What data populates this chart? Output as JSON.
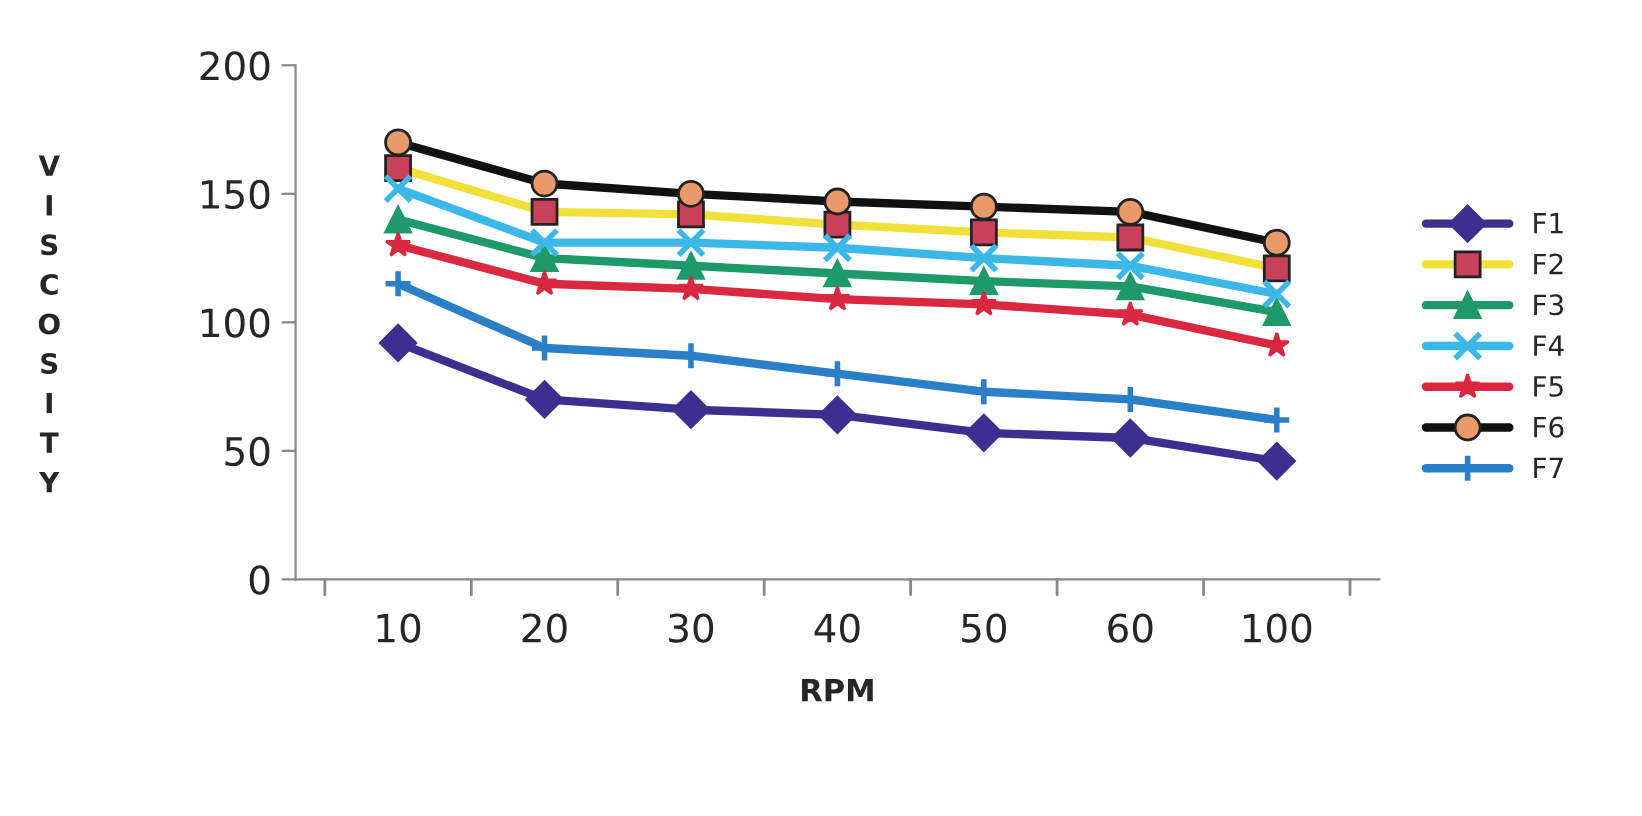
{
  "chart_data": {
    "type": "line",
    "xlabel": "RPM",
    "ylabel": "VISCOSITY",
    "categories": [
      "10",
      "20",
      "30",
      "40",
      "50",
      "60",
      "100"
    ],
    "series": [
      {
        "name": "F1",
        "color": "#3b2f8f",
        "marker": "diamond",
        "values": [
          92,
          70,
          66,
          64,
          57,
          55,
          46
        ]
      },
      {
        "name": "F2",
        "color": "#f2e03a",
        "marker": "square",
        "values": [
          160,
          143,
          142,
          138,
          135,
          133,
          121
        ]
      },
      {
        "name": "F3",
        "color": "#1e9a6a",
        "marker": "triangle",
        "values": [
          140,
          125,
          122,
          119,
          116,
          114,
          104
        ]
      },
      {
        "name": "F4",
        "color": "#3cb8e8",
        "marker": "cross",
        "values": [
          152,
          131,
          131,
          129,
          125,
          122,
          111
        ]
      },
      {
        "name": "F5",
        "color": "#d9283f",
        "marker": "star",
        "values": [
          130,
          115,
          113,
          109,
          107,
          103,
          91
        ]
      },
      {
        "name": "F6",
        "color": "#111111",
        "marker": "circle",
        "values": [
          170,
          154,
          150,
          147,
          145,
          143,
          131
        ]
      },
      {
        "name": "F7",
        "color": "#2a7fc8",
        "marker": "plus",
        "values": [
          115,
          90,
          87,
          80,
          73,
          70,
          62
        ]
      }
    ],
    "ylim": [
      0,
      200
    ],
    "yticks": [
      0,
      50,
      100,
      150,
      200
    ],
    "grid": false,
    "legend": "right",
    "line_style": "solid"
  }
}
